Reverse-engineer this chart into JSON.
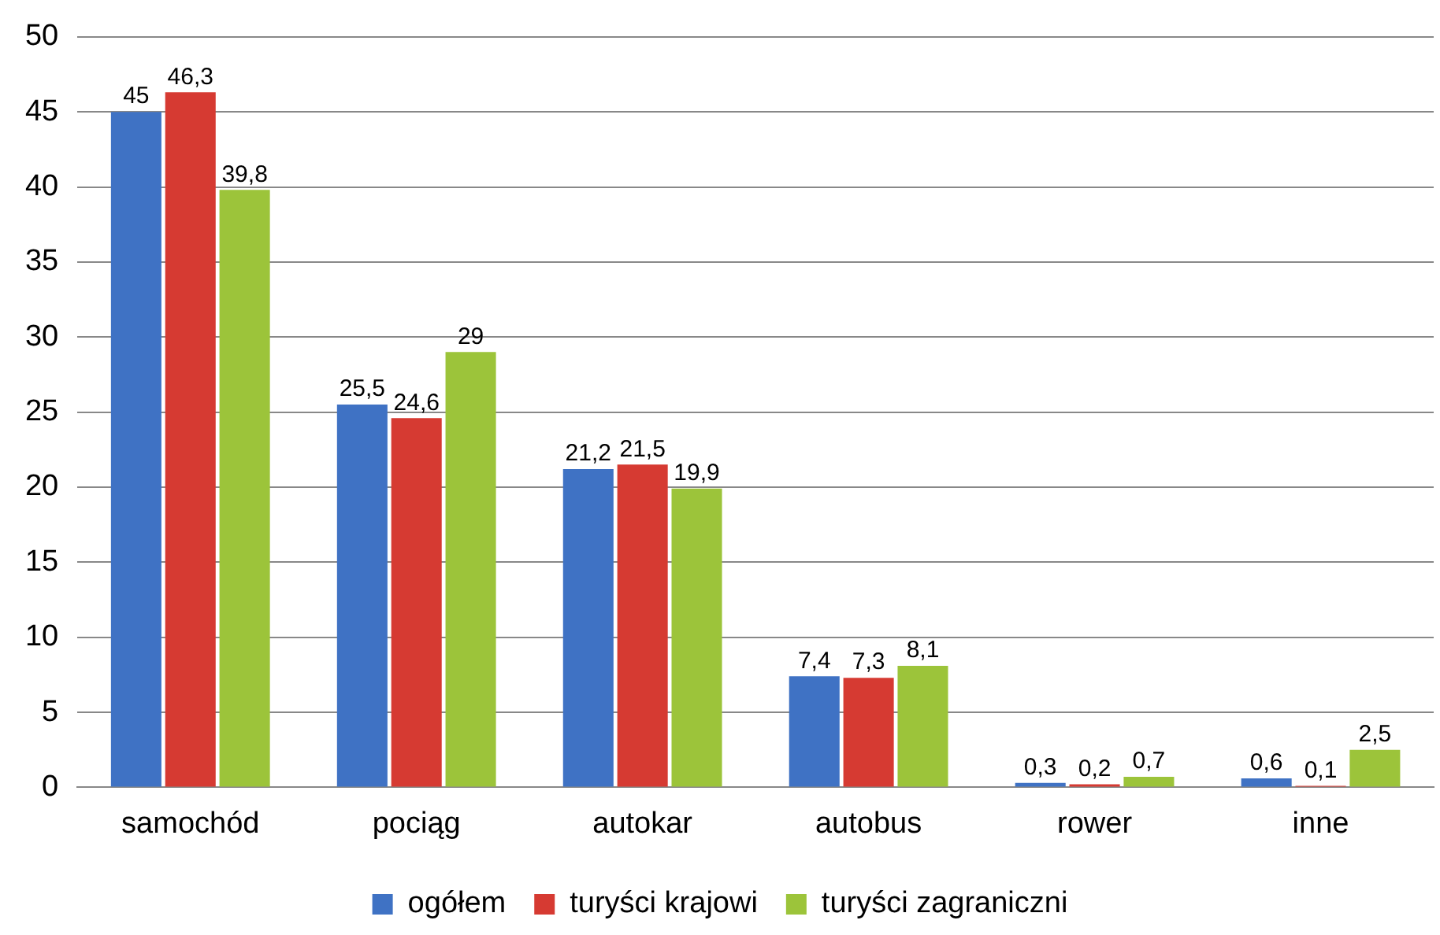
{
  "chart_data": {
    "type": "bar",
    "categories": [
      "samochód",
      "pociąg",
      "autokar",
      "autobus",
      "rower",
      "inne"
    ],
    "series": [
      {
        "name": "ogółem",
        "color": "#3f72c4",
        "values": [
          45,
          25.5,
          21.2,
          7.4,
          0.3,
          0.6
        ],
        "value_labels": [
          "45",
          "25,5",
          "21,2",
          "7,4",
          "0,3",
          "0,6"
        ]
      },
      {
        "name": "turyści krajowi",
        "color": "#d63a32",
        "values": [
          46.3,
          24.6,
          21.5,
          7.3,
          0.2,
          0.1
        ],
        "value_labels": [
          "46,3",
          "24,6",
          "21,5",
          "7,3",
          "0,2",
          "0,1"
        ]
      },
      {
        "name": "turyści zagraniczni",
        "color": "#9cc43a",
        "values": [
          39.8,
          29,
          19.9,
          8.1,
          0.7,
          2.5
        ],
        "value_labels": [
          "39,8",
          "29",
          "19,9",
          "8,1",
          "0,7",
          "2,5"
        ]
      }
    ],
    "ylim": [
      0,
      50
    ],
    "yticks": [
      0,
      5,
      10,
      15,
      20,
      25,
      30,
      35,
      40,
      45,
      50
    ],
    "grid": "y",
    "legend": "bottom"
  }
}
